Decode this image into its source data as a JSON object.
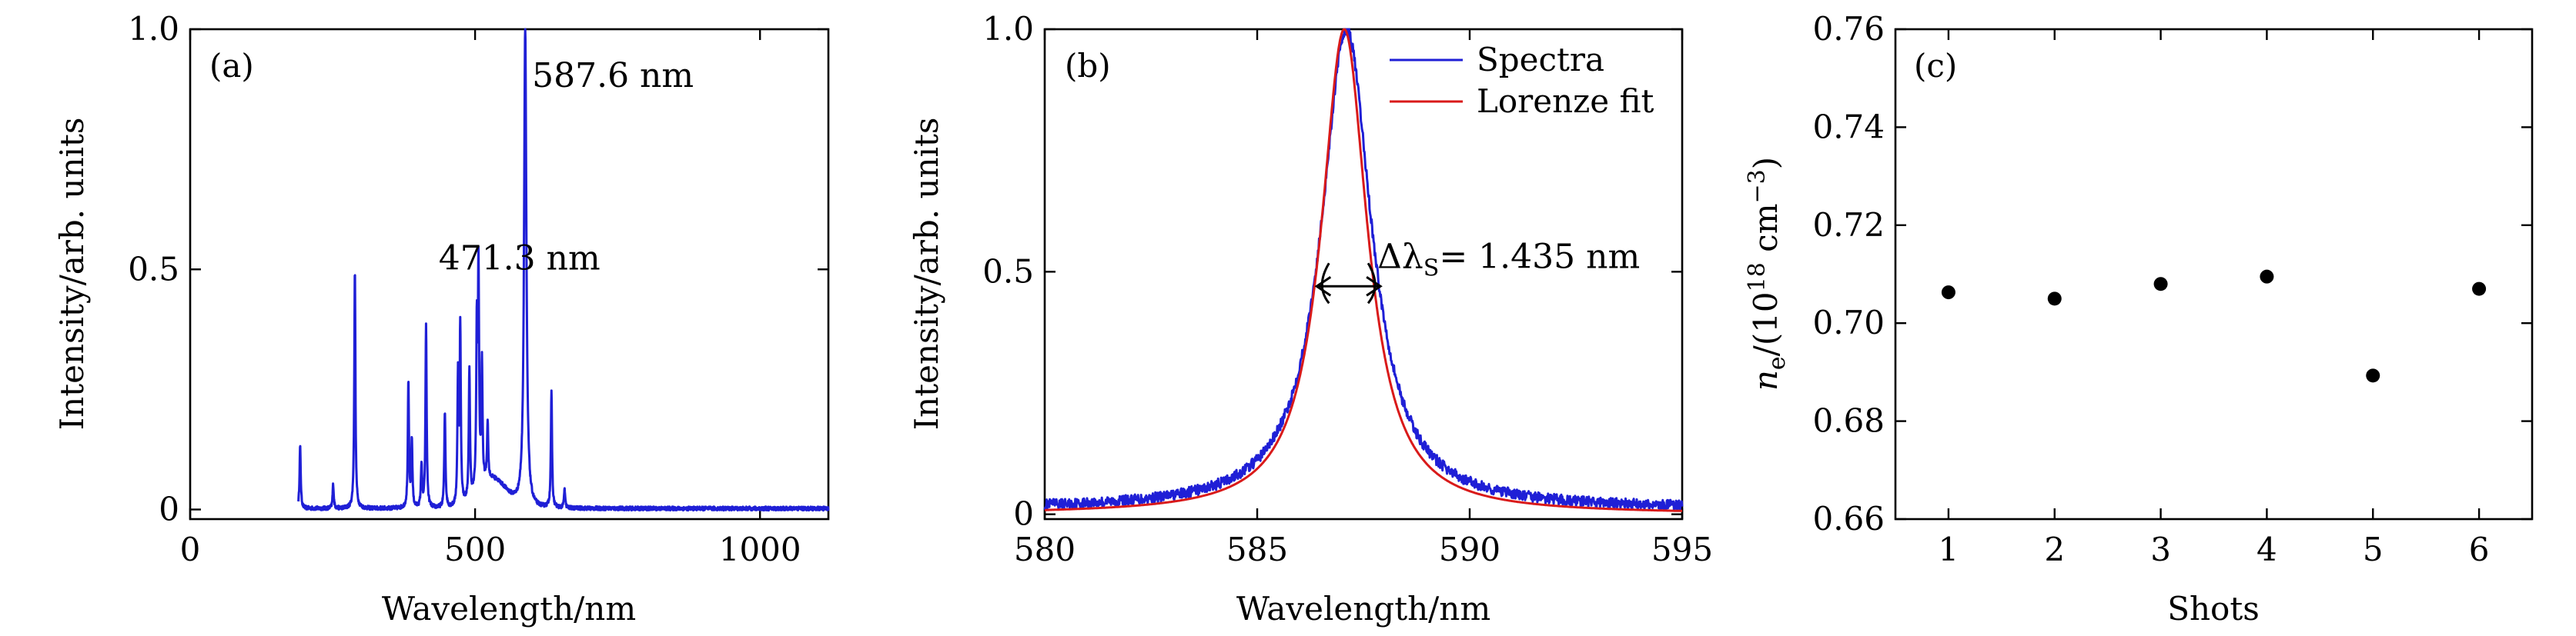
{
  "chart_data": [
    {
      "panel": "(a)",
      "type": "line",
      "xlabel": "Wavelength/nm",
      "ylabel": "Intensity/arb. units",
      "xlim": [
        0,
        1120
      ],
      "ylim": [
        -0.02,
        1.0
      ],
      "xticks": [
        0,
        500,
        1000
      ],
      "yticks": [
        0,
        0.5,
        1.0
      ],
      "ytick_labels": [
        "0",
        "0.5",
        "1.0"
      ],
      "grid": false,
      "series": [
        {
          "color": "#1f1fd6",
          "baseline": 0.002,
          "peaks": [
            {
              "x": 193,
              "y": 0.13
            },
            {
              "x": 251,
              "y": 0.05
            },
            {
              "x": 289,
              "y": 0.5
            },
            {
              "x": 383,
              "y": 0.26
            },
            {
              "x": 389,
              "y": 0.14
            },
            {
              "x": 406,
              "y": 0.09
            },
            {
              "x": 414,
              "y": 0.38
            },
            {
              "x": 447,
              "y": 0.2
            },
            {
              "x": 470,
              "y": 0.27
            },
            {
              "x": 474,
              "y": 0.37
            },
            {
              "x": 490,
              "y": 0.27
            },
            {
              "x": 503,
              "y": 0.33
            },
            {
              "x": 506,
              "y": 0.45
            },
            {
              "x": 512,
              "y": 0.25
            },
            {
              "x": 522,
              "y": 0.12
            },
            {
              "x": 588,
              "y": 1.0
            },
            {
              "x": 634,
              "y": 0.24
            },
            {
              "x": 657,
              "y": 0.04
            }
          ]
        }
      ],
      "annotations": [
        {
          "text": "587.6 nm",
          "x": 600,
          "y": 0.88
        },
        {
          "text": "471.3 nm",
          "x": 436,
          "y": 0.5
        }
      ]
    },
    {
      "panel": "(b)",
      "type": "line",
      "xlabel": "Wavelength/nm",
      "ylabel": "Intensity/arb. units",
      "xlim": [
        580,
        595
      ],
      "ylim": [
        -0.01,
        1.0
      ],
      "xticks": [
        580,
        585,
        590,
        595
      ],
      "yticks": [
        0,
        0.5,
        1.0
      ],
      "ytick_labels": [
        "0",
        "0.5",
        "1.0"
      ],
      "grid": false,
      "legend_position": "top-right",
      "series": [
        {
          "name": "Spectra",
          "color": "#1f1fd6",
          "center": 587.1,
          "fwhm": 1.435,
          "peak": 1.0,
          "offset": 0.01
        },
        {
          "name": "Lorenze fit",
          "color": "#d91a1a",
          "center": 587.05,
          "fwhm": 1.435,
          "peak": 1.0,
          "offset": 0.0
        }
      ],
      "annotations": [
        {
          "text": "Δλ",
          "subscript": "S",
          "value_text": "= 1.435 nm",
          "arrow_from": 586.4,
          "arrow_to": 587.9,
          "y": 0.47
        }
      ]
    },
    {
      "panel": "(c)",
      "type": "scatter",
      "xlabel": "Shots",
      "ylabel_symbol": "n",
      "ylabel_subscript": "e",
      "ylabel_open": "/(10",
      "ylabel_sup1": "18",
      "ylabel_mid": " cm",
      "ylabel_sup2": "−3",
      "ylabel_close": ")",
      "xlim": [
        0.5,
        6.5
      ],
      "ylim": [
        0.66,
        0.76
      ],
      "xticks": [
        1,
        2,
        3,
        4,
        5,
        6
      ],
      "yticks": [
        0.66,
        0.68,
        0.7,
        0.72,
        0.74,
        0.76
      ],
      "ytick_labels": [
        "0.66",
        "0.68",
        "0.70",
        "0.72",
        "0.74",
        "0.76"
      ],
      "grid": false,
      "series": [
        {
          "color": "#000000",
          "x": [
            1,
            2,
            3,
            4,
            5,
            6
          ],
          "y": [
            0.7063,
            0.705,
            0.708,
            0.7095,
            0.6893,
            0.707
          ]
        }
      ]
    }
  ]
}
